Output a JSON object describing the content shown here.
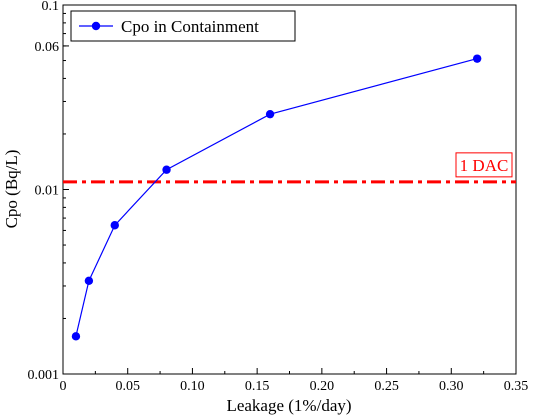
{
  "chart_data": {
    "type": "line",
    "xlabel": "Leakage (1%/day)",
    "ylabel": "Cpo (Bq/L)",
    "xlim": [
      0,
      0.35
    ],
    "ylim": [
      0.001,
      0.1
    ],
    "yscale": "log",
    "grid": false,
    "legend_position": "top-left",
    "xticks": [
      {
        "value": 0,
        "label": "0"
      },
      {
        "value": 0.05,
        "label": "0.05"
      },
      {
        "value": 0.1,
        "label": "0.10"
      },
      {
        "value": 0.15,
        "label": "0.15"
      },
      {
        "value": 0.2,
        "label": "0.20"
      },
      {
        "value": 0.25,
        "label": "0.25"
      },
      {
        "value": 0.3,
        "label": "0.30"
      },
      {
        "value": 0.35,
        "label": "0.35"
      }
    ],
    "yticks": [
      {
        "value": 0.001,
        "label": "0.001"
      },
      {
        "value": 0.01,
        "label": "0.01"
      },
      {
        "value": 0.06,
        "label": "0.06"
      },
      {
        "value": 0.1,
        "label": "0.1"
      }
    ],
    "series": [
      {
        "name": "Cpo in Containment",
        "color": "#0000ff",
        "marker": "circle",
        "x": [
          0.01,
          0.02,
          0.04,
          0.08,
          0.16,
          0.32
        ],
        "y": [
          0.0016,
          0.0032,
          0.0064,
          0.0128,
          0.0256,
          0.0512
        ]
      }
    ],
    "reference_line": {
      "label": "1 DAC",
      "value": 0.011,
      "color": "#ff0000",
      "style": "dash-dot"
    }
  }
}
